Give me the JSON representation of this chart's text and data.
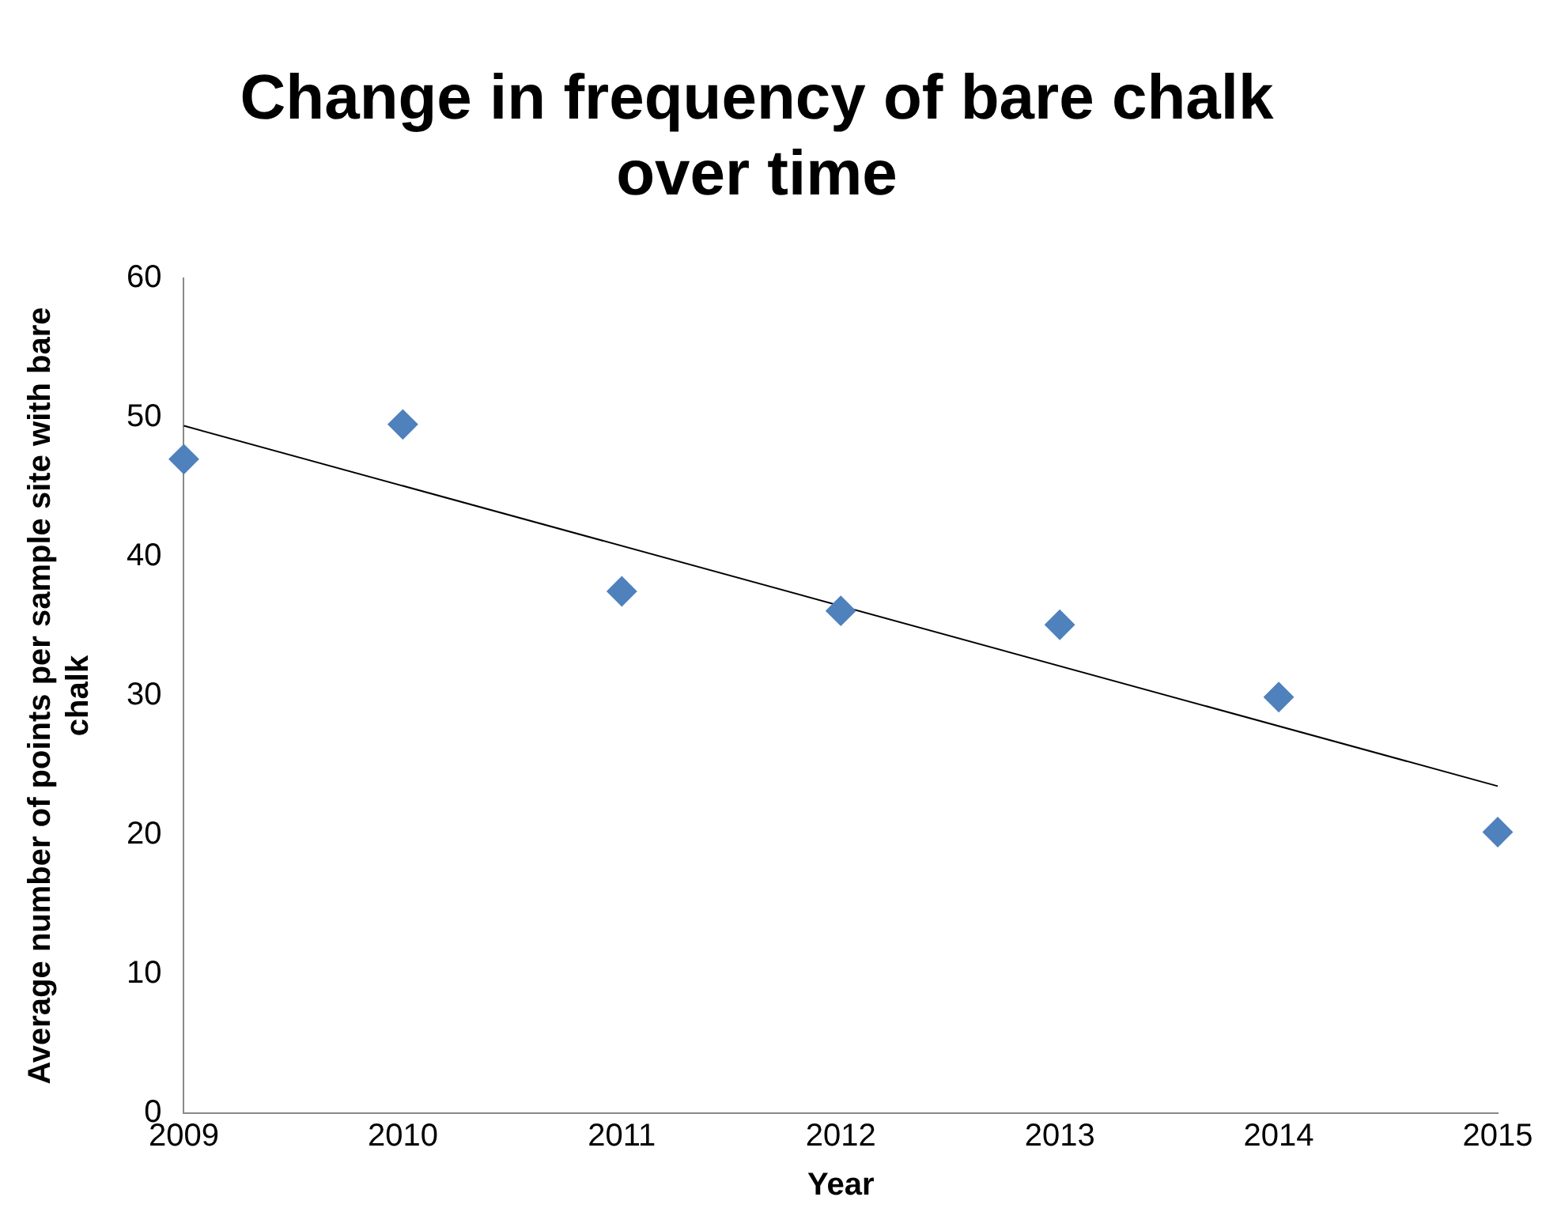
{
  "chart_data": {
    "type": "scatter",
    "title": "Change in frequency of bare chalk over time",
    "xlabel": "Year",
    "ylabel": "Average number of points per sample site with bare chalk",
    "x": [
      2009,
      2010,
      2011,
      2012,
      2013,
      2014,
      2015
    ],
    "series": [
      {
        "color": "#4f81bd",
        "marker": "diamond",
        "values": [
          47,
          49.5,
          37.5,
          36.1,
          35.1,
          29.9,
          20.2
        ]
      },
      {
        "type": "line",
        "color": "#000000",
        "marker": "none",
        "x": [
          2009,
          2015
        ],
        "values": [
          49.4,
          23.5
        ]
      }
    ],
    "xlim": [
      2009,
      2015
    ],
    "xticks": [
      2009,
      2010,
      2011,
      2012,
      2013,
      2014,
      2015
    ],
    "ylim": [
      0,
      60
    ],
    "yticks": [
      0,
      10,
      20,
      30,
      40,
      50,
      60
    ],
    "grid": false,
    "legend": false
  }
}
